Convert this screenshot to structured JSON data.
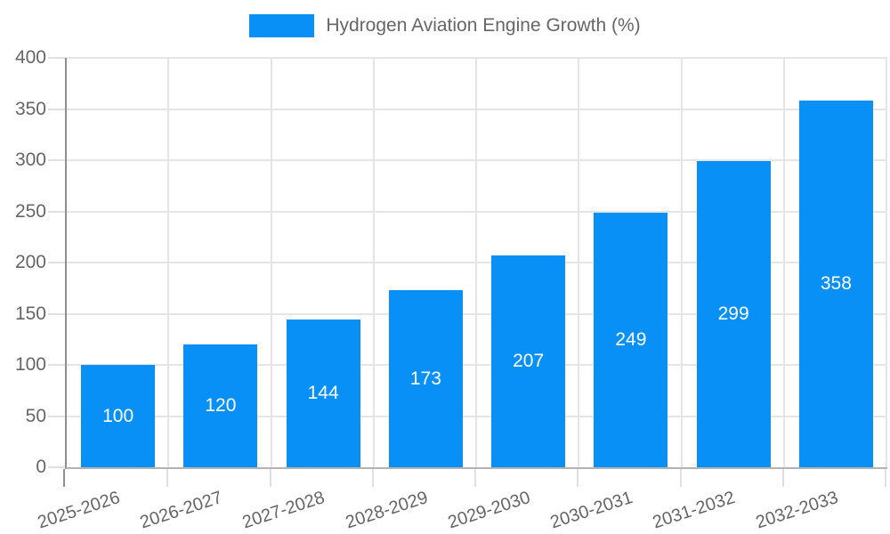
{
  "chart_data": {
    "type": "bar",
    "title": "Hydrogen Aviation Engine Growth (%)",
    "categories": [
      "2025-2026",
      "2026-2027",
      "2027-2028",
      "2028-2029",
      "2029-2030",
      "2030-2031",
      "2031-2032",
      "2032-2033"
    ],
    "series": [
      {
        "name": "Hydrogen Aviation Engine Growth (%)",
        "values": [
          100,
          120,
          144,
          173,
          207,
          249,
          299,
          358
        ]
      }
    ],
    "value_labels": [
      "100",
      "120",
      "144",
      "173",
      "207",
      "249",
      "299",
      "358"
    ],
    "xlabel": "",
    "ylabel": "",
    "ylim": [
      0,
      400
    ],
    "ytick_step": 50,
    "ytick_labels": [
      "0",
      "50",
      "100",
      "150",
      "200",
      "250",
      "300",
      "350",
      "400"
    ],
    "grid": true,
    "legend_position": "top",
    "x_tick_rotation_deg": 18,
    "colors": {
      "bar": "#0990f6",
      "value_label": "#ffffff",
      "axis_text": "#666666",
      "gridline": "#e5e5e5",
      "y_axis_line": "#8f8f8f",
      "x_axis_line": "#b3b3b3"
    }
  }
}
